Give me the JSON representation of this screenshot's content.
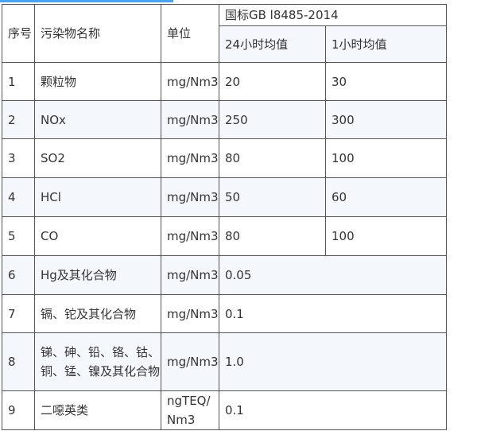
{
  "header": {
    "seq": "序号",
    "name": "污染物名称",
    "unit": "单位",
    "standard": "国标GB l8485-2014",
    "avg24": "24小时均值",
    "avg1": "1小时均值"
  },
  "rows": [
    {
      "seq": "1",
      "name": "颗粒物",
      "unit": "mg/Nm3",
      "avg24": "20",
      "avg1": "30"
    },
    {
      "seq": "2",
      "name": "NOx",
      "unit": "mg/Nm3",
      "avg24": "250",
      "avg1": "300"
    },
    {
      "seq": "3",
      "name": "SO2",
      "unit": "mg/Nm3",
      "avg24": "80",
      "avg1": "100"
    },
    {
      "seq": "4",
      "name": "HCl",
      "unit": "mg/Nm3",
      "avg24": "50",
      "avg1": "60"
    },
    {
      "seq": "5",
      "name": "CO",
      "unit": "mg/Nm3",
      "avg24": "80",
      "avg1": "100"
    },
    {
      "seq": "6",
      "name": "Hg及其化合物",
      "unit": "mg/Nm3",
      "value": "0.05"
    },
    {
      "seq": "7",
      "name": "镉、铊及其化合物",
      "unit": "mg/Nm3",
      "value": "0.1"
    },
    {
      "seq": "8",
      "name": "锑、砷、铅、铬、钴、铜、锰、镍及其化合物",
      "unit": "mg/Nm3",
      "value": "1.0"
    },
    {
      "seq": "9",
      "name": "二噁英类",
      "unit": "ngTEQ/Nm3",
      "value": "0.1"
    }
  ],
  "colors": {
    "accent_bar": "#4aa3ee",
    "row_tint": "#f4f8fd",
    "border": "#555555"
  }
}
